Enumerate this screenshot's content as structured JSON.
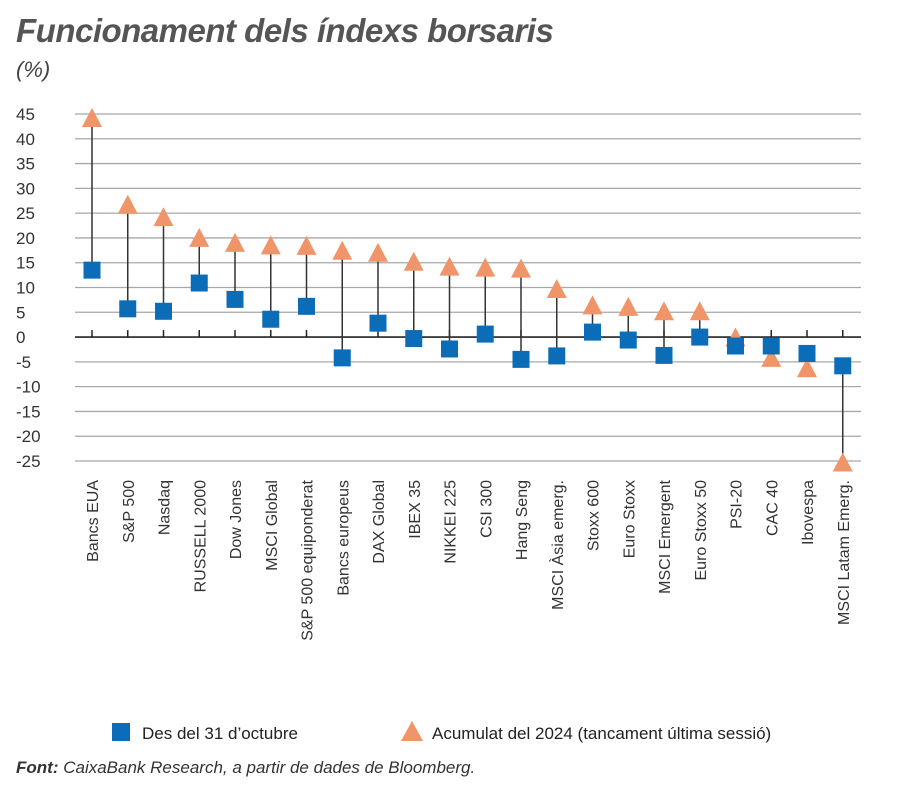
{
  "chart_data": {
    "type": "scatter",
    "title": "Funcionament dels índexs borsaris",
    "ylabel": "(%)",
    "ylim": [
      -25,
      45
    ],
    "yticks": [
      45,
      40,
      35,
      30,
      25,
      20,
      15,
      10,
      5,
      0,
      -5,
      -10,
      -15,
      -20,
      -25
    ],
    "grid": true,
    "legend": "bottom",
    "categories": [
      "Bancs EUA",
      "S&P 500",
      "Nasdaq",
      "RUSSELL 2000",
      "Dow Jones",
      "MSCI Global",
      "S&P 500 equiponderat",
      "Bancs europeus",
      "DAX Global",
      "IBEX 35",
      "NIKKEI 225",
      "CSI 300",
      "Hang Seng",
      "MSCI Àsia emerg.",
      "Stoxx 600",
      "Euro Stoxx",
      "MSCI Emergent",
      "Euro Stoxx 50",
      "PSI-20",
      "CAC 40",
      "Ibovespa",
      "MSCI Latam Emerg."
    ],
    "series": [
      {
        "name": "Des del 31 d’octubre",
        "marker": "square",
        "color": "#0b6db7",
        "values": [
          13.5,
          5.7,
          5.2,
          10.9,
          7.6,
          3.6,
          6.2,
          -4.2,
          2.8,
          -0.3,
          -2.4,
          0.6,
          -4.5,
          -3.8,
          1.0,
          -0.6,
          -3.7,
          0.0,
          -1.8,
          -1.8,
          -3.3,
          -5.8
        ]
      },
      {
        "name": "Acumulat del 2024 (tancament última sessió)",
        "marker": "triangle",
        "color": "#f0956a",
        "values": [
          44,
          26.5,
          24,
          19.8,
          18.8,
          18.3,
          18.2,
          17.2,
          16.8,
          15,
          14,
          13.8,
          13.6,
          9.5,
          6.2,
          5.9,
          5,
          5,
          -0.3,
          -4.4,
          -6.5,
          -25.5
        ]
      }
    ]
  },
  "source": {
    "label": "Font:",
    "text": " CaixaBank Research, a partir de dades de Bloomberg."
  }
}
